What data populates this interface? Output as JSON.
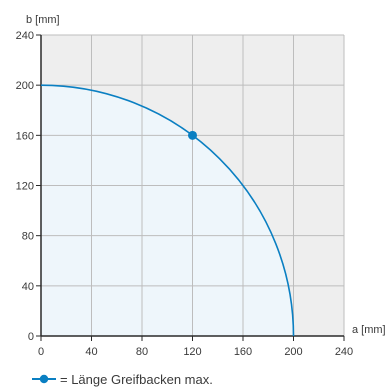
{
  "chart_data": {
    "type": "line",
    "xlabel": "a [mm]",
    "ylabel": "b [mm]",
    "xlim": [
      0,
      240
    ],
    "ylim": [
      0,
      240
    ],
    "x_ticks": [
      0,
      40,
      80,
      120,
      160,
      200,
      240
    ],
    "y_ticks": [
      0,
      40,
      80,
      120,
      160,
      200,
      240
    ],
    "grid": true,
    "series": [
      {
        "name": "",
        "curve": "quarter-circle",
        "radius": 200,
        "points": [
          {
            "x": 0,
            "y": 200
          },
          {
            "x": 40,
            "y": 196
          },
          {
            "x": 80,
            "y": 183
          },
          {
            "x": 120,
            "y": 160
          },
          {
            "x": 160,
            "y": 120
          },
          {
            "x": 180,
            "y": 87
          },
          {
            "x": 200,
            "y": 0
          }
        ]
      }
    ],
    "highlight_point": {
      "x": 120,
      "y": 160
    },
    "legend": {
      "text": "= Länge Greifbacken max.",
      "placement": "bottom-left"
    },
    "colors": {
      "series": "#0a7fc2",
      "area_fill": "#eef6fb",
      "plot_background": "#eeeeee",
      "grid": "#bdbdbd",
      "axis": "#2a2a2a"
    }
  }
}
